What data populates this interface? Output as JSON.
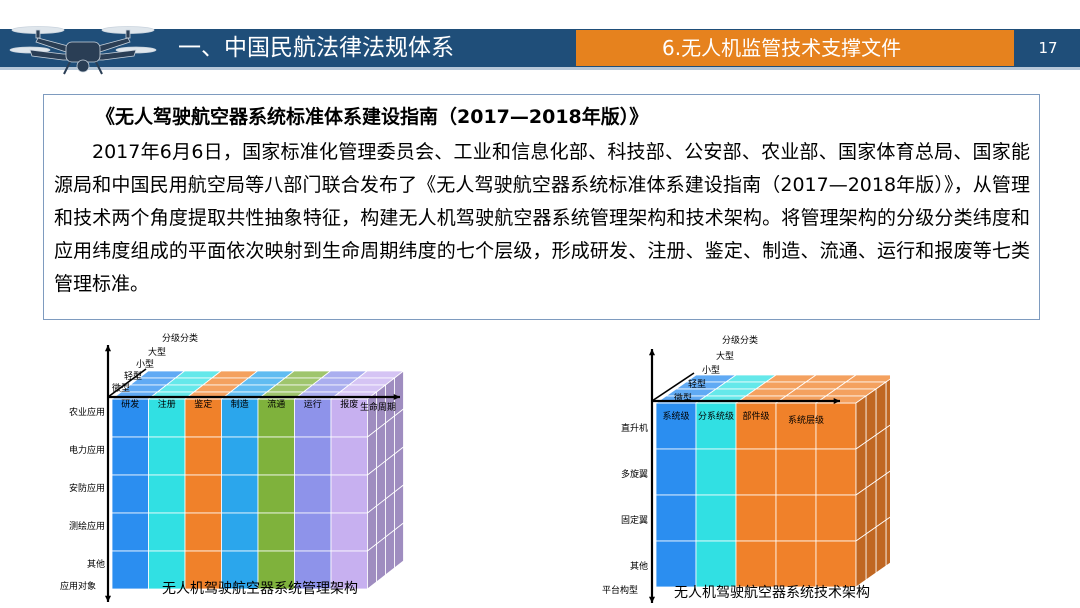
{
  "header": {
    "section_title": "一、中国民航法律法规体系",
    "subsection_title": "6.无人机监管技术支撑文件",
    "page_number": "17",
    "logo_icon": "drone-icon"
  },
  "document": {
    "title": "《无人驾驶航空器系统标准体系建设指南（2017—2018年版）》",
    "body": "2017年6月6日，国家标准化管理委员会、工业和信息化部、科技部、公安部、农业部、国家体育总局、国家能源局和中国民用航空局等八部门联合发布了《无人驾驶航空器系统标准体系建设指南（2017—2018年版）》，从管理和技术两个角度提取共性抽象特征，构建无人机驾驶航空器系统管理架构和技术架构。将管理架构的分级分类纬度和应用纬度组成的平面依次映射到生命周期纬度的七个层级，形成研发、注册、鉴定、制造、流通、运行和报废等七类管理标准。"
  },
  "management_diagram": {
    "caption": "无人机驾驶航空器系统管理架构",
    "axis_top": "分级分类",
    "axis_right": "生命周期",
    "axis_bottom": "应用对象",
    "depth_labels": [
      "大型",
      "小型",
      "轻型",
      "微型"
    ],
    "stage_labels": [
      "研发",
      "注册",
      "鉴定",
      "制造",
      "流通",
      "运行",
      "报废"
    ],
    "application_labels": [
      "农业应用",
      "电力应用",
      "安防应用",
      "测绘应用",
      "其他"
    ],
    "colors": [
      "#2b8ef0",
      "#31e0e3",
      "#f0812a",
      "#2ba6ec",
      "#7fb23c",
      "#8e93ea",
      "#c7b0f0"
    ]
  },
  "technical_diagram": {
    "caption": "无人机驾驶航空器系统技术架构",
    "axis_top": "分级分类",
    "axis_right": "系统层级",
    "axis_bottom": "平台构型",
    "depth_labels": [
      "大型",
      "小型",
      "轻型",
      "微型"
    ],
    "level_labels": [
      "系统级",
      "分系统级",
      "部件级"
    ],
    "platform_labels": [
      "直升机",
      "多旋翼",
      "固定翼",
      "其他"
    ],
    "colors": [
      "#2b8ef0",
      "#31e0e3",
      "#f0812a",
      "#f0812a",
      "#f0812a"
    ]
  }
}
